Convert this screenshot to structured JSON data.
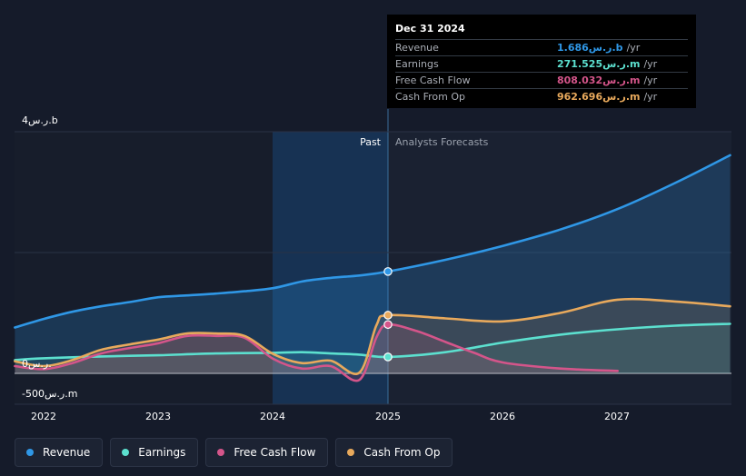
{
  "tooltip": {
    "date": "Dec 31 2024",
    "rows": [
      {
        "label": "Revenue",
        "value": "1.686ر.س.b",
        "unit": "/yr",
        "color": "#2f97e6"
      },
      {
        "label": "Earnings",
        "value": "271.525ر.س.m",
        "unit": "/yr",
        "color": "#5ce0cf"
      },
      {
        "label": "Free Cash Flow",
        "value": "808.032ر.س.m",
        "unit": "/yr",
        "color": "#d4558a"
      },
      {
        "label": "Cash From Op",
        "value": "962.696ر.س.m",
        "unit": "/yr",
        "color": "#e8a95c"
      }
    ]
  },
  "legend": [
    {
      "label": "Revenue",
      "color": "#2f97e6"
    },
    {
      "label": "Earnings",
      "color": "#5ce0cf"
    },
    {
      "label": "Free Cash Flow",
      "color": "#d4558a"
    },
    {
      "label": "Cash From Op",
      "color": "#e8a95c"
    }
  ],
  "chart_data": {
    "type": "line",
    "title": "",
    "xlabel": "",
    "ylabel": "",
    "y_unit": "SAR millions",
    "xlim": [
      2021.75,
      2027.98
    ],
    "ylim": [
      -500,
      4000
    ],
    "grid": true,
    "past_label": "Past",
    "forecast_label": "Analysts Forecasts",
    "past_start": 2024.0,
    "forecast_start": 2025.0,
    "y_tick_labels": [
      {
        "value": 4000,
        "label": "4ر.س.b"
      },
      {
        "value": 0,
        "label": "0ر.س."
      },
      {
        "value": -500,
        "label": "-500ر.س.m"
      }
    ],
    "x_ticks": [
      2022,
      2023,
      2024,
      2025,
      2026,
      2027
    ],
    "x_tick_labels": [
      "2022",
      "2023",
      "2024",
      "2025",
      "2026",
      "2027"
    ],
    "highlight_x": 2025.0,
    "series": [
      {
        "name": "Revenue",
        "color": "#2f97e6",
        "x": [
          2021.75,
          2022.0,
          2022.25,
          2022.5,
          2022.75,
          2023.0,
          2023.25,
          2023.5,
          2023.75,
          2024.0,
          2024.25,
          2024.5,
          2024.75,
          2025.0,
          2025.5,
          2026.0,
          2026.5,
          2027.0,
          2027.5,
          2027.98
        ],
        "y": [
          760,
          900,
          1020,
          1110,
          1180,
          1260,
          1290,
          1320,
          1360,
          1410,
          1520,
          1580,
          1620,
          1686,
          1880,
          2110,
          2380,
          2720,
          3150,
          3610
        ]
      },
      {
        "name": "Earnings",
        "color": "#5ce0cf",
        "x": [
          2021.75,
          2022.0,
          2022.5,
          2023.0,
          2023.5,
          2024.0,
          2024.25,
          2024.5,
          2024.75,
          2025.0,
          2025.5,
          2026.0,
          2026.5,
          2027.0,
          2027.5,
          2027.98
        ],
        "y": [
          220,
          250,
          280,
          300,
          330,
          340,
          350,
          330,
          310,
          271.525,
          350,
          510,
          640,
          730,
          790,
          820
        ]
      },
      {
        "name": "Free Cash Flow",
        "color": "#d4558a",
        "x": [
          2021.75,
          2022.0,
          2022.25,
          2022.5,
          2022.75,
          2023.0,
          2023.25,
          2023.5,
          2023.75,
          2024.0,
          2024.25,
          2024.5,
          2024.75,
          2024.9,
          2025.0,
          2025.25,
          2025.5,
          2025.75,
          2026.0,
          2026.5,
          2027.0
        ],
        "y": [
          120,
          70,
          170,
          330,
          420,
          500,
          620,
          620,
          590,
          240,
          80,
          120,
          -110,
          600,
          808.032,
          700,
          520,
          340,
          180,
          80,
          40
        ]
      },
      {
        "name": "Cash From Op",
        "color": "#e8a95c",
        "x": [
          2021.75,
          2022.0,
          2022.25,
          2022.5,
          2022.75,
          2023.0,
          2023.25,
          2023.5,
          2023.75,
          2024.0,
          2024.25,
          2024.5,
          2024.75,
          2024.9,
          2025.0,
          2025.5,
          2026.0,
          2026.5,
          2027.0,
          2027.5,
          2027.98
        ],
        "y": [
          200,
          120,
          220,
          390,
          480,
          560,
          660,
          660,
          620,
          320,
          170,
          210,
          10,
          800,
          962.696,
          910,
          860,
          1000,
          1220,
          1190,
          1110
        ]
      }
    ]
  }
}
